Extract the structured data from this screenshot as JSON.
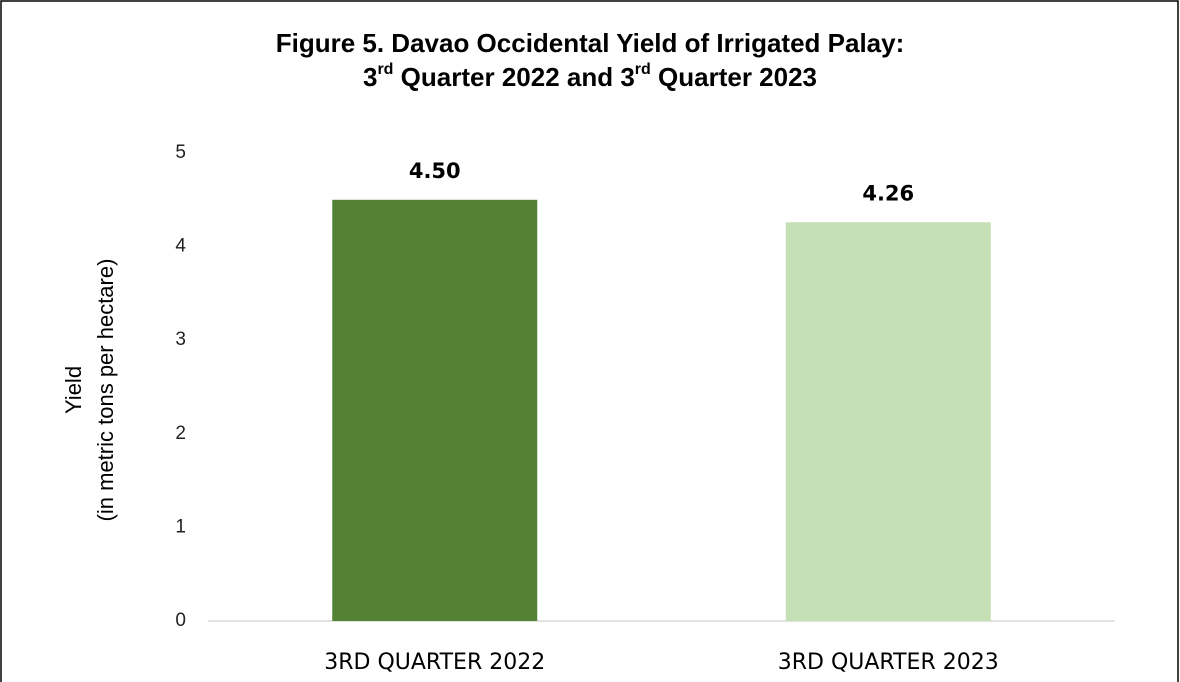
{
  "chart_data": {
    "type": "bar",
    "title": [
      "Figure 5. Davao Occidental Yield of Irrigated Palay:",
      "3rd Quarter 2022 and 3rd Quarter 2023"
    ],
    "y_label": [
      "Yield",
      "(in metric tons per hectare)"
    ],
    "categories": [
      "3RD QUARTER 2022",
      "3RD QUARTER 2023"
    ],
    "values": [
      4.5,
      4.26
    ],
    "value_labels": [
      "4.50",
      "4.26"
    ],
    "colors": [
      "#548235",
      "#c5e0b4"
    ],
    "ylim": [
      0,
      5
    ],
    "yticks": [
      0,
      1,
      2,
      3,
      4,
      5
    ],
    "grid": false
  }
}
